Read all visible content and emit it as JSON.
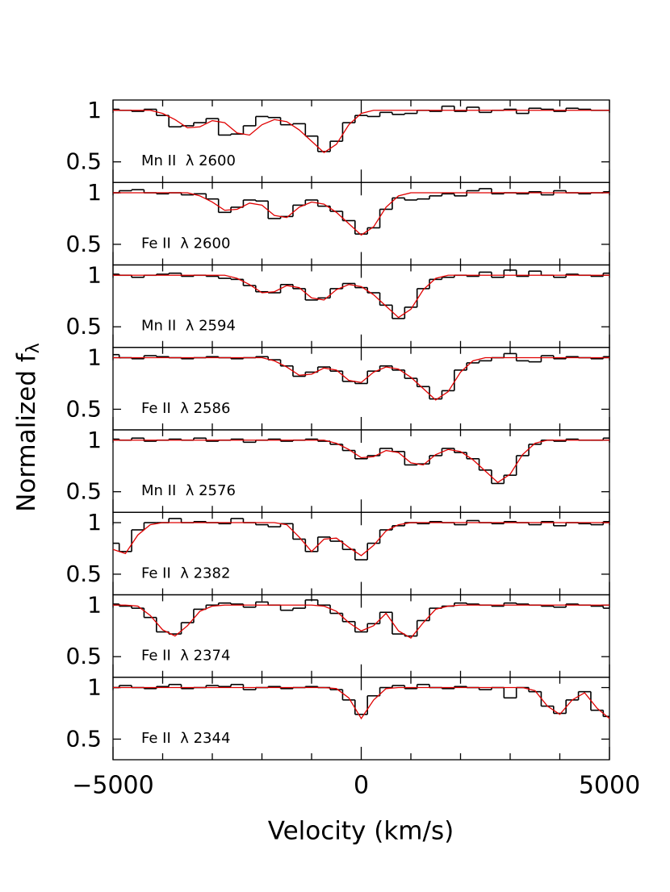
{
  "chart_data": {
    "type": "line",
    "xlabel": "Velocity (km/s)",
    "ylabel": {
      "text": "Normalized f",
      "subscript": "λ"
    },
    "xlim": [
      -5000,
      5000
    ],
    "xticks": [
      {
        "value": -5000,
        "label": "−5000"
      },
      0,
      5000
    ],
    "xminorticks": [
      -4000,
      -3000,
      -2000,
      -1000,
      1000,
      2000,
      3000,
      4000
    ],
    "x": [
      -5000,
      -4750,
      -4500,
      -4250,
      -4000,
      -3750,
      -3500,
      -3250,
      -3000,
      -2750,
      -2500,
      -2250,
      -2000,
      -1750,
      -1500,
      -1250,
      -1000,
      -750,
      -500,
      -250,
      0,
      250,
      500,
      750,
      1000,
      1250,
      1500,
      1750,
      2000,
      2250,
      2500,
      2750,
      3000,
      3250,
      3500,
      3750,
      4000,
      4250,
      4500,
      4750,
      5000
    ],
    "ylim": [
      0.3,
      1.1
    ],
    "yticks": [
      0.5,
      1
    ],
    "panels": [
      {
        "label": "Mn II  λ 2600",
        "series": [
          {
            "color": "#000000",
            "step": true,
            "values": [
              1.01,
              1.0,
              0.99,
              1.01,
              0.95,
              0.84,
              0.85,
              0.88,
              0.92,
              0.76,
              0.77,
              0.85,
              0.94,
              0.93,
              0.86,
              0.87,
              0.75,
              0.6,
              0.7,
              0.88,
              0.95,
              0.94,
              0.98,
              0.96,
              0.97,
              1.0,
              0.99,
              1.04,
              0.99,
              1.03,
              0.98,
              1.0,
              1.01,
              0.97,
              1.02,
              1.01,
              0.99,
              1.02,
              1.01,
              1.0,
              1.0
            ]
          },
          {
            "color": "#e00000",
            "step": false,
            "values": [
              1,
              1,
              1,
              1,
              0.97,
              0.91,
              0.83,
              0.84,
              0.9,
              0.88,
              0.78,
              0.76,
              0.86,
              0.91,
              0.89,
              0.81,
              0.7,
              0.59,
              0.67,
              0.86,
              0.97,
              1,
              1,
              1,
              1,
              1,
              1,
              1,
              1,
              1,
              1,
              1,
              1,
              1,
              1,
              1,
              1,
              1,
              1,
              1,
              1
            ]
          }
        ]
      },
      {
        "label": "Fe II  λ 2600",
        "series": [
          {
            "color": "#000000",
            "step": true,
            "values": [
              1.0,
              1.02,
              1.03,
              1.0,
              0.99,
              1.0,
              0.98,
              0.99,
              0.94,
              0.81,
              0.86,
              0.93,
              0.92,
              0.75,
              0.77,
              0.88,
              0.93,
              0.87,
              0.82,
              0.73,
              0.6,
              0.66,
              0.84,
              0.95,
              0.93,
              0.94,
              0.97,
              0.99,
              0.97,
              1.02,
              1.04,
              0.99,
              1.0,
              0.99,
              1.01,
              0.98,
              1.02,
              1.0,
              0.99,
              1.0,
              1.01
            ]
          },
          {
            "color": "#e00000",
            "step": false,
            "values": [
              1,
              1,
              1,
              1,
              1,
              1,
              1,
              0.97,
              0.91,
              0.83,
              0.84,
              0.9,
              0.88,
              0.78,
              0.76,
              0.86,
              0.91,
              0.89,
              0.81,
              0.7,
              0.59,
              0.67,
              0.86,
              0.97,
              1,
              1,
              1,
              1,
              1,
              1,
              1,
              1,
              1,
              1,
              1,
              1,
              1,
              1,
              1,
              1,
              1
            ]
          }
        ]
      },
      {
        "label": "Mn II  λ 2594",
        "series": [
          {
            "color": "#000000",
            "step": true,
            "values": [
              1.01,
              1.0,
              0.98,
              1.0,
              1.01,
              1.02,
              0.99,
              1.0,
              0.99,
              0.97,
              0.96,
              0.9,
              0.84,
              0.83,
              0.91,
              0.87,
              0.76,
              0.78,
              0.87,
              0.92,
              0.88,
              0.83,
              0.71,
              0.58,
              0.69,
              0.87,
              0.96,
              0.98,
              1.0,
              0.99,
              1.03,
              0.98,
              1.05,
              0.99,
              1.04,
              1.0,
              0.98,
              1.01,
              1.0,
              0.99,
              1.02
            ]
          },
          {
            "color": "#e00000",
            "step": false,
            "values": [
              1,
              1,
              1,
              1,
              1,
              1,
              1,
              1,
              1,
              1,
              0.97,
              0.91,
              0.83,
              0.84,
              0.9,
              0.88,
              0.78,
              0.76,
              0.86,
              0.91,
              0.89,
              0.81,
              0.7,
              0.59,
              0.67,
              0.86,
              0.97,
              1,
              1,
              1,
              1,
              1,
              1,
              1,
              1,
              1,
              1,
              1,
              1,
              1,
              1
            ]
          }
        ]
      },
      {
        "label": "Fe II  λ 2586",
        "series": [
          {
            "color": "#000000",
            "step": true,
            "values": [
              1.03,
              1.0,
              0.99,
              1.02,
              1.01,
              1.0,
              0.99,
              1.0,
              1.01,
              1.0,
              0.99,
              1.0,
              1.01,
              0.98,
              0.92,
              0.82,
              0.86,
              0.91,
              0.87,
              0.77,
              0.75,
              0.87,
              0.92,
              0.88,
              0.8,
              0.72,
              0.6,
              0.68,
              0.88,
              0.95,
              0.97,
              1.0,
              1.04,
              0.97,
              0.96,
              1.02,
              0.99,
              1.01,
              1.0,
              0.99,
              1.01
            ]
          },
          {
            "color": "#e00000",
            "step": false,
            "values": [
              1,
              1,
              1,
              1,
              1,
              1,
              1,
              1,
              1,
              1,
              1,
              1,
              1,
              0.97,
              0.91,
              0.83,
              0.84,
              0.9,
              0.88,
              0.78,
              0.76,
              0.86,
              0.91,
              0.89,
              0.81,
              0.7,
              0.59,
              0.67,
              0.86,
              0.97,
              1,
              1,
              1,
              1,
              1,
              1,
              1,
              1,
              1,
              1,
              1
            ]
          }
        ]
      },
      {
        "label": "Mn II  λ 2576",
        "series": [
          {
            "color": "#000000",
            "step": true,
            "values": [
              1.01,
              1.0,
              1.02,
              0.99,
              1.0,
              1.01,
              1.0,
              1.02,
              0.99,
              1.0,
              1.01,
              0.98,
              1.0,
              1.01,
              0.99,
              1.0,
              1.01,
              0.99,
              0.96,
              0.9,
              0.82,
              0.85,
              0.92,
              0.89,
              0.76,
              0.77,
              0.85,
              0.92,
              0.88,
              0.82,
              0.71,
              0.58,
              0.66,
              0.85,
              0.96,
              1.0,
              0.99,
              1.01,
              1.0,
              1.0,
              1.02
            ]
          },
          {
            "color": "#e00000",
            "step": false,
            "values": [
              1,
              1,
              1,
              1,
              1,
              1,
              1,
              1,
              1,
              1,
              1,
              1,
              1,
              1,
              1,
              1,
              1,
              1,
              0.97,
              0.91,
              0.83,
              0.84,
              0.9,
              0.88,
              0.78,
              0.76,
              0.86,
              0.91,
              0.89,
              0.81,
              0.7,
              0.59,
              0.67,
              0.86,
              0.97,
              1,
              1,
              1,
              1,
              1,
              1
            ]
          }
        ]
      },
      {
        "label": "Fe II  λ 2382",
        "series": [
          {
            "color": "#000000",
            "step": true,
            "values": [
              0.8,
              0.72,
              0.93,
              1.0,
              1.0,
              1.04,
              1.0,
              1.01,
              1.0,
              0.99,
              1.04,
              1.0,
              0.98,
              0.96,
              0.99,
              0.84,
              0.72,
              0.86,
              0.82,
              0.74,
              0.64,
              0.8,
              0.93,
              0.97,
              1.0,
              0.99,
              1.01,
              1.0,
              0.98,
              1.02,
              1.0,
              0.99,
              1.01,
              1.0,
              0.98,
              1.01,
              0.97,
              1.0,
              0.99,
              0.98,
              1.01
            ]
          },
          {
            "color": "#e00000",
            "step": false,
            "values": [
              0.74,
              0.7,
              0.88,
              0.98,
              1,
              1,
              1,
              1,
              1,
              1,
              1,
              1,
              1,
              1,
              0.98,
              0.86,
              0.72,
              0.84,
              0.85,
              0.76,
              0.68,
              0.78,
              0.92,
              0.98,
              1,
              1,
              1,
              1,
              1,
              1,
              1,
              1,
              1,
              1,
              1,
              1,
              1,
              1,
              1,
              1,
              1
            ]
          }
        ]
      },
      {
        "label": "Fe II  λ 2374",
        "series": [
          {
            "color": "#000000",
            "step": true,
            "values": [
              1.01,
              0.99,
              0.97,
              0.88,
              0.74,
              0.72,
              0.83,
              0.96,
              1.0,
              1.02,
              1.01,
              0.98,
              1.03,
              1.0,
              0.95,
              0.97,
              1.05,
              1.0,
              0.92,
              0.84,
              0.74,
              0.82,
              0.93,
              0.72,
              0.7,
              0.85,
              0.97,
              0.99,
              1.02,
              1.01,
              1.0,
              0.99,
              1.02,
              1.01,
              1.0,
              0.99,
              0.98,
              1.01,
              1.0,
              0.99,
              0.97
            ]
          },
          {
            "color": "#e00000",
            "step": false,
            "values": [
              1,
              1,
              0.99,
              0.9,
              0.76,
              0.7,
              0.8,
              0.94,
              0.99,
              1,
              1,
              1,
              1,
              1,
              1,
              1,
              1,
              0.99,
              0.94,
              0.83,
              0.75,
              0.8,
              0.92,
              0.75,
              0.68,
              0.83,
              0.96,
              0.99,
              1,
              1,
              1,
              1,
              1,
              1,
              1,
              1,
              1,
              1,
              1,
              1,
              1
            ]
          }
        ]
      },
      {
        "label": "Fe II  λ 2344",
        "series": [
          {
            "color": "#000000",
            "step": true,
            "values": [
              1.0,
              1.02,
              1.0,
              0.99,
              1.01,
              1.03,
              0.99,
              1.0,
              1.02,
              1.01,
              1.03,
              0.98,
              1.0,
              1.01,
              0.99,
              1.0,
              1.01,
              1.0,
              0.98,
              0.88,
              0.74,
              0.92,
              1.0,
              1.02,
              0.99,
              1.03,
              1.0,
              0.99,
              1.01,
              1.0,
              0.98,
              1.0,
              0.9,
              1.0,
              0.96,
              0.82,
              0.75,
              0.88,
              0.96,
              0.78,
              0.72
            ]
          },
          {
            "color": "#e00000",
            "step": false,
            "values": [
              1,
              1,
              1,
              1,
              1,
              1,
              1,
              1,
              1,
              1,
              1,
              1,
              1,
              1,
              1,
              1,
              1,
              1,
              0.99,
              0.9,
              0.7,
              0.88,
              0.99,
              1,
              1,
              1,
              1,
              1,
              1,
              1,
              1,
              1,
              1,
              1,
              0.97,
              0.82,
              0.74,
              0.88,
              0.95,
              0.8,
              0.7
            ]
          }
        ]
      }
    ]
  }
}
